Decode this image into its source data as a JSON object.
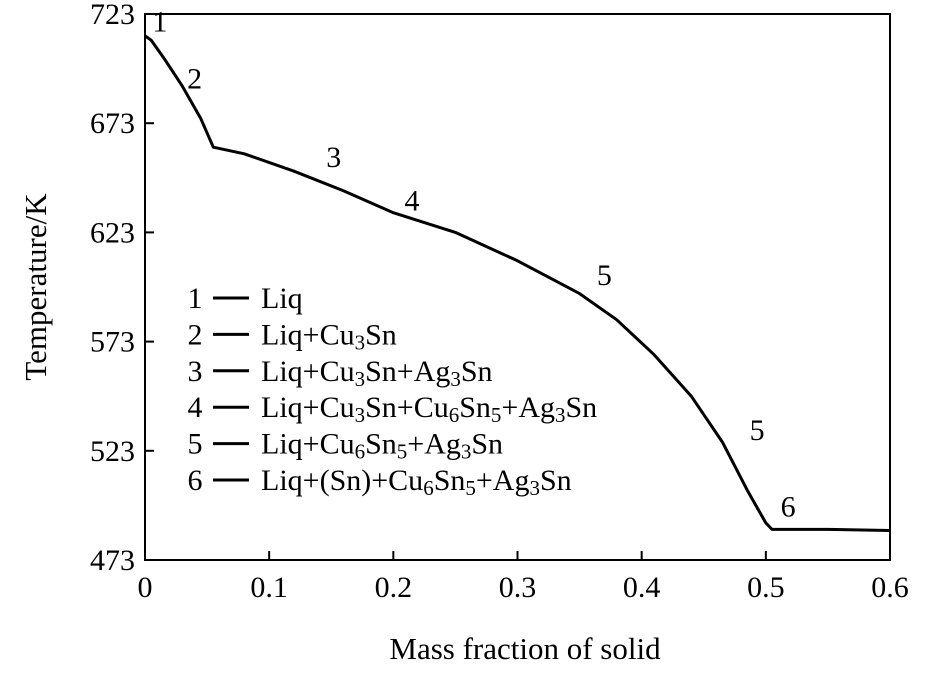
{
  "chart_data": {
    "type": "line",
    "xlabel": "Mass fraction of solid",
    "ylabel": "Temperature/K",
    "xlim": [
      0,
      0.6
    ],
    "ylim": [
      473,
      723
    ],
    "x_ticks": [
      0,
      0.1,
      0.2,
      0.3,
      0.4,
      0.5,
      0.6
    ],
    "x_tick_labels": [
      "0",
      "0.1",
      "0.2",
      "0.3",
      "0.4",
      "0.5",
      "0.6"
    ],
    "y_ticks": [
      473,
      523,
      573,
      623,
      673,
      723
    ],
    "y_tick_labels": [
      "473",
      "523",
      "573",
      "623",
      "673",
      "723"
    ],
    "grid": false,
    "legend_position": "left",
    "series": [
      {
        "color": "#000000",
        "x": [
          0,
          0.005,
          0.015,
          0.03,
          0.045,
          0.055,
          0.08,
          0.12,
          0.16,
          0.2,
          0.25,
          0.3,
          0.35,
          0.38,
          0.41,
          0.44,
          0.465,
          0.485,
          0.5,
          0.505,
          0.51,
          0.55,
          0.6
        ],
        "y": [
          713,
          711,
          703,
          690,
          675,
          662,
          659,
          651,
          642,
          632,
          623,
          610,
          595,
          583,
          567,
          548,
          527,
          505,
          490,
          487,
          487,
          487,
          486.5
        ]
      }
    ],
    "annotations": [
      {
        "label": "1",
        "x": 0.012,
        "y": 715
      },
      {
        "label": "2",
        "x": 0.04,
        "y": 689
      },
      {
        "label": "3",
        "x": 0.152,
        "y": 653
      },
      {
        "label": "4",
        "x": 0.215,
        "y": 633
      },
      {
        "label": "5",
        "x": 0.37,
        "y": 599
      },
      {
        "label": "5",
        "x": 0.493,
        "y": 528
      },
      {
        "label": "6",
        "x": 0.518,
        "y": 493
      }
    ],
    "legend": [
      {
        "num": "1",
        "parts": [
          [
            "Liq",
            ""
          ]
        ]
      },
      {
        "num": "2",
        "parts": [
          [
            "Liq+Cu",
            ""
          ],
          [
            "3",
            "sub"
          ],
          [
            "Sn",
            ""
          ]
        ]
      },
      {
        "num": "3",
        "parts": [
          [
            "Liq+Cu",
            ""
          ],
          [
            "3",
            "sub"
          ],
          [
            "Sn+Ag",
            ""
          ],
          [
            "3",
            "sub"
          ],
          [
            "Sn",
            ""
          ]
        ]
      },
      {
        "num": "4",
        "parts": [
          [
            "Liq+Cu",
            ""
          ],
          [
            "3",
            "sub"
          ],
          [
            "Sn+Cu",
            ""
          ],
          [
            "6",
            "sub"
          ],
          [
            "Sn",
            ""
          ],
          [
            "5",
            "sub"
          ],
          [
            "+Ag",
            ""
          ],
          [
            "3",
            "sub"
          ],
          [
            "Sn",
            ""
          ]
        ]
      },
      {
        "num": "5",
        "parts": [
          [
            "Liq+Cu",
            ""
          ],
          [
            "6",
            "sub"
          ],
          [
            "Sn",
            ""
          ],
          [
            "5",
            "sub"
          ],
          [
            "+Ag",
            ""
          ],
          [
            "3",
            "sub"
          ],
          [
            "Sn",
            ""
          ]
        ]
      },
      {
        "num": "6",
        "parts": [
          [
            "Liq+(Sn)+Cu",
            ""
          ],
          [
            "6",
            "sub"
          ],
          [
            "Sn",
            ""
          ],
          [
            "5",
            "sub"
          ],
          [
            "+Ag",
            ""
          ],
          [
            "3",
            "sub"
          ],
          [
            "Sn",
            ""
          ]
        ]
      }
    ]
  }
}
